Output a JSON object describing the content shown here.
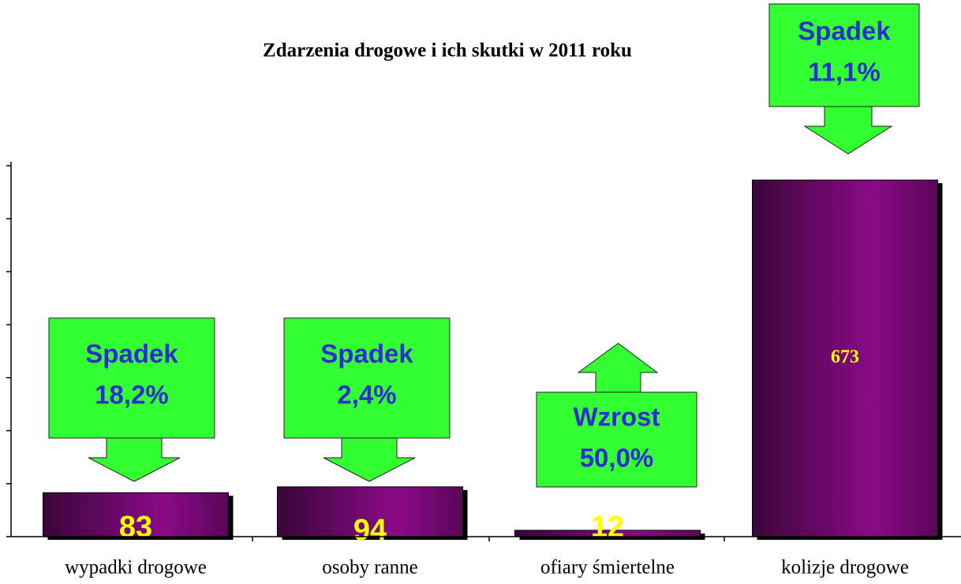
{
  "chart_data": {
    "type": "bar",
    "title": "Zdarzenia drogowe i ich skutki w 2011 roku",
    "categories": [
      "wypadki drogowe",
      "osoby ranne",
      "ofiary śmiertelne",
      "kolizje drogowe"
    ],
    "values": [
      83,
      94,
      12,
      673
    ],
    "color": "#7a0a7a",
    "ylim": [
      0,
      700
    ],
    "yticks": [
      0,
      100,
      200,
      300,
      400,
      500,
      600,
      700
    ],
    "annotations": [
      {
        "lines": [
          "Spadek",
          "18,2%"
        ],
        "direction": "down"
      },
      {
        "lines": [
          "Spadek",
          "2,4%"
        ],
        "direction": "down"
      },
      {
        "lines": [
          "Wzrost",
          "50,0%"
        ],
        "direction": "up"
      },
      {
        "lines": [
          "Spadek",
          "11,1%"
        ],
        "direction": "down"
      }
    ]
  }
}
